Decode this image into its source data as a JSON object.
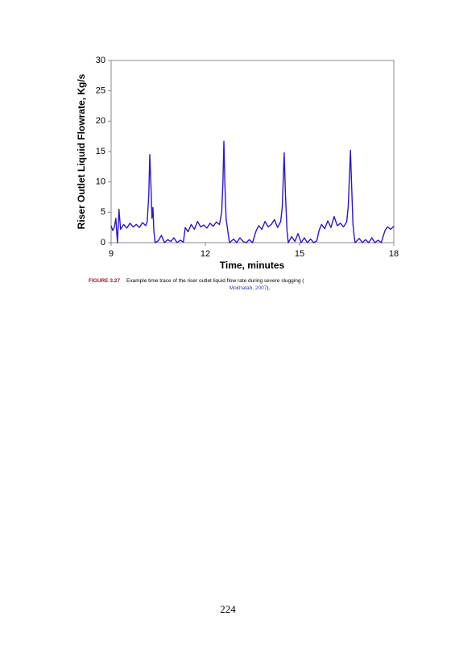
{
  "chart_data": {
    "type": "line",
    "xlabel": "Time, minutes",
    "ylabel": "Riser Outlet Liquid Flowrate, Kg/s",
    "x": [
      9.0,
      9.05,
      9.1,
      9.15,
      9.2,
      9.25,
      9.3,
      9.4,
      9.5,
      9.6,
      9.7,
      9.8,
      9.9,
      10.0,
      10.1,
      10.15,
      10.2,
      10.23,
      10.27,
      10.3,
      10.33,
      10.36,
      10.4,
      10.5,
      10.6,
      10.7,
      10.8,
      10.9,
      11.0,
      11.1,
      11.2,
      11.3,
      11.36,
      11.45,
      11.55,
      11.65,
      11.75,
      11.85,
      11.95,
      12.05,
      12.15,
      12.25,
      12.35,
      12.45,
      12.52,
      12.56,
      12.59,
      12.62,
      12.66,
      12.7,
      12.74,
      12.77,
      12.9,
      13.0,
      13.1,
      13.2,
      13.3,
      13.4,
      13.5,
      13.62,
      13.7,
      13.8,
      13.9,
      14.0,
      14.1,
      14.2,
      14.3,
      14.4,
      14.45,
      14.51,
      14.55,
      14.6,
      14.64,
      14.75,
      14.85,
      14.95,
      15.05,
      15.15,
      15.25,
      15.35,
      15.45,
      15.55,
      15.62,
      15.7,
      15.8,
      15.9,
      16.0,
      16.1,
      16.2,
      16.3,
      16.4,
      16.5,
      16.55,
      16.62,
      16.66,
      16.7,
      16.74,
      16.77,
      16.9,
      17.0,
      17.1,
      17.2,
      17.3,
      17.4,
      17.5,
      17.6,
      17.72,
      17.8,
      17.9,
      18.0
    ],
    "values": [
      2.8,
      2.0,
      2.5,
      4.0,
      0,
      5.5,
      2.2,
      3.0,
      2.4,
      3.2,
      2.6,
      3.0,
      2.5,
      3.3,
      2.8,
      3.5,
      8.0,
      14.5,
      9.0,
      4.0,
      5.8,
      2.0,
      0,
      0.3,
      1.2,
      0,
      0.5,
      0.2,
      0.8,
      0,
      0.4,
      0.1,
      2.5,
      1.8,
      3.0,
      2.2,
      3.5,
      2.6,
      2.9,
      2.4,
      3.2,
      2.7,
      3.4,
      3.0,
      5.0,
      10.0,
      16.7,
      10.0,
      4.0,
      2.5,
      1.0,
      0,
      0.6,
      0,
      0.8,
      0.2,
      0,
      0.5,
      0,
      2.0,
      2.8,
      2.2,
      3.5,
      2.6,
      3.0,
      3.8,
      2.5,
      3.5,
      6.0,
      14.8,
      8.0,
      2.0,
      0,
      1.0,
      0.2,
      1.5,
      0,
      0.8,
      0,
      0.6,
      0,
      0.3,
      2.0,
      3.0,
      2.3,
      3.6,
      2.5,
      4.3,
      2.8,
      3.2,
      2.6,
      3.4,
      6.0,
      15.2,
      9.0,
      3.0,
      1.0,
      0,
      0.7,
      0,
      0.5,
      0,
      0.8,
      0,
      0.4,
      0,
      2.0,
      2.6,
      2.2,
      2.7
    ],
    "color": "#2a17c8",
    "xlim": [
      9,
      18
    ],
    "xticks": [
      9,
      12,
      15,
      18
    ],
    "ylim": [
      0,
      30
    ],
    "yticks": [
      0,
      5,
      10,
      15,
      20,
      25,
      30
    ],
    "grid": false
  },
  "caption": {
    "label": "FIGURE 3.27",
    "text": "Example time trace of the riser outlet liquid flow rate during severe slugging (",
    "citation": "Mokhatab, 2007",
    "tail": ")."
  },
  "page_number": "224"
}
